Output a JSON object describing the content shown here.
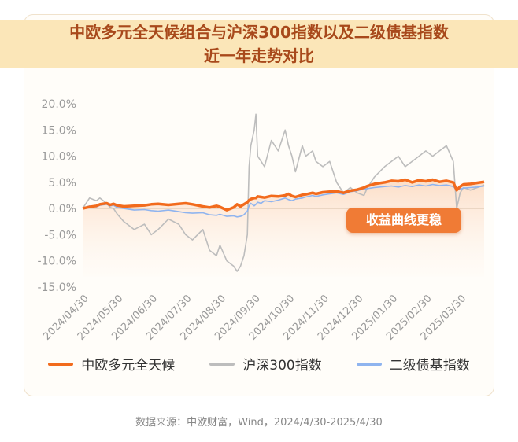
{
  "title_line1": "中欧多元全天候组合与沪深300指数以及二级债基指数",
  "title_line2": "近一年走势对比",
  "callout": "收益曲线更稳",
  "source": "数据来源：中欧财富，Wind，2024/4/30-2025/4/30",
  "chart_data": {
    "type": "line",
    "ylim": [
      -15,
      20
    ],
    "yticks": [
      "20.0%",
      "15.0%",
      "10.0%",
      "5.0%",
      "0.0%",
      "-5.0%",
      "-10.0%",
      "-15.0%"
    ],
    "ytick_values": [
      20,
      15,
      10,
      5,
      0,
      -5,
      -10,
      -15
    ],
    "xticks": [
      "2024/04/30",
      "2024/05/30",
      "2024/06/30",
      "2024/07/30",
      "2024/08/30",
      "2024/09/30",
      "2024/10/30",
      "2024/11/30",
      "2024/12/30",
      "2025/01/30",
      "2025/02/30",
      "2025/03/30"
    ],
    "x": [
      0,
      0.2,
      0.4,
      0.5,
      0.7,
      0.8,
      0.9,
      1.0,
      1.2,
      1.5,
      1.8,
      2.0,
      2.2,
      2.5,
      2.8,
      3.0,
      3.2,
      3.5,
      3.7,
      3.9,
      4.0,
      4.2,
      4.4,
      4.5,
      4.6,
      4.7,
      4.8,
      4.85,
      4.9,
      5.0,
      5.05,
      5.1,
      5.2,
      5.3,
      5.5,
      5.7,
      5.9,
      6.0,
      6.1,
      6.2,
      6.4,
      6.5,
      6.7,
      6.8,
      7.0,
      7.2,
      7.4,
      7.6,
      7.8,
      8.0,
      8.2,
      8.3,
      8.5,
      8.8,
      9.0,
      9.2,
      9.4,
      9.6,
      9.8,
      10.0,
      10.2,
      10.4,
      10.6,
      10.8,
      10.9,
      11.0,
      11.1,
      11.3,
      11.5,
      11.7
    ],
    "series": [
      {
        "name": "中欧多元全天候",
        "color": "#f26b1d",
        "values": [
          0,
          0.3,
          0.5,
          0.8,
          1,
          0.7,
          0.9,
          0.6,
          0.4,
          0.5,
          0.6,
          0.8,
          0.9,
          0.7,
          0.9,
          1,
          0.8,
          0.4,
          0.2,
          0.5,
          0.3,
          -0.3,
          0.2,
          0.8,
          0.4,
          0.8,
          1.2,
          1.6,
          1.8,
          2.0,
          2.0,
          2.3,
          2.2,
          2.1,
          2.4,
          2.3,
          2.5,
          2.8,
          2.4,
          2.2,
          2.6,
          2.7,
          3.0,
          2.8,
          3.1,
          3.2,
          3.3,
          3.0,
          3.4,
          3.6,
          4.0,
          4.3,
          4.7,
          5.0,
          5.3,
          5.2,
          5.5,
          5.0,
          5.4,
          5.2,
          5.5,
          5.1,
          5.3,
          5.0,
          3.5,
          4.2,
          4.6,
          4.7,
          4.9,
          5.1
        ]
      },
      {
        "name": "沪深300指数",
        "color": "#bdbdbd",
        "values": [
          0,
          2,
          1.5,
          2,
          1,
          0.2,
          0,
          -1,
          -2.5,
          -4,
          -3,
          -5,
          -4,
          -2,
          -3,
          -5,
          -6,
          -4,
          -8,
          -9,
          -7,
          -10,
          -11,
          -12,
          -11,
          -9,
          -5,
          8,
          12,
          15,
          18,
          10,
          9,
          8,
          13,
          11,
          15,
          12,
          10,
          7,
          12,
          10,
          11,
          9,
          8,
          9,
          5,
          3,
          4,
          3,
          2.5,
          4,
          6,
          8,
          9,
          10,
          8,
          9,
          10,
          11,
          10,
          11,
          12,
          9,
          0,
          3,
          4,
          3.5,
          4,
          4.5
        ]
      },
      {
        "name": "二级债基指数",
        "color": "#8fb4ef",
        "values": [
          0,
          0.5,
          0.3,
          0.6,
          0.8,
          0.5,
          0.6,
          0.2,
          0,
          -0.3,
          -0.2,
          -0.4,
          -0.5,
          -0.3,
          -0.6,
          -0.8,
          -0.9,
          -0.8,
          -1.2,
          -1.3,
          -1.1,
          -1.5,
          -1.4,
          -1.6,
          -1.5,
          -1.2,
          -0.5,
          0.5,
          1.0,
          0.5,
          0.8,
          1.2,
          1.0,
          1.5,
          1.3,
          1.6,
          2.0,
          1.7,
          1.5,
          1.8,
          2.0,
          2.2,
          2.5,
          2.3,
          2.6,
          2.8,
          3.0,
          2.7,
          3.2,
          3.4,
          3.7,
          3.8,
          4.0,
          4.2,
          4.3,
          4.1,
          4.4,
          4.2,
          4.5,
          4.3,
          4.6,
          4.4,
          4.5,
          4.2,
          3.5,
          3.7,
          3.9,
          4.0,
          4.1,
          4.3
        ]
      }
    ]
  }
}
